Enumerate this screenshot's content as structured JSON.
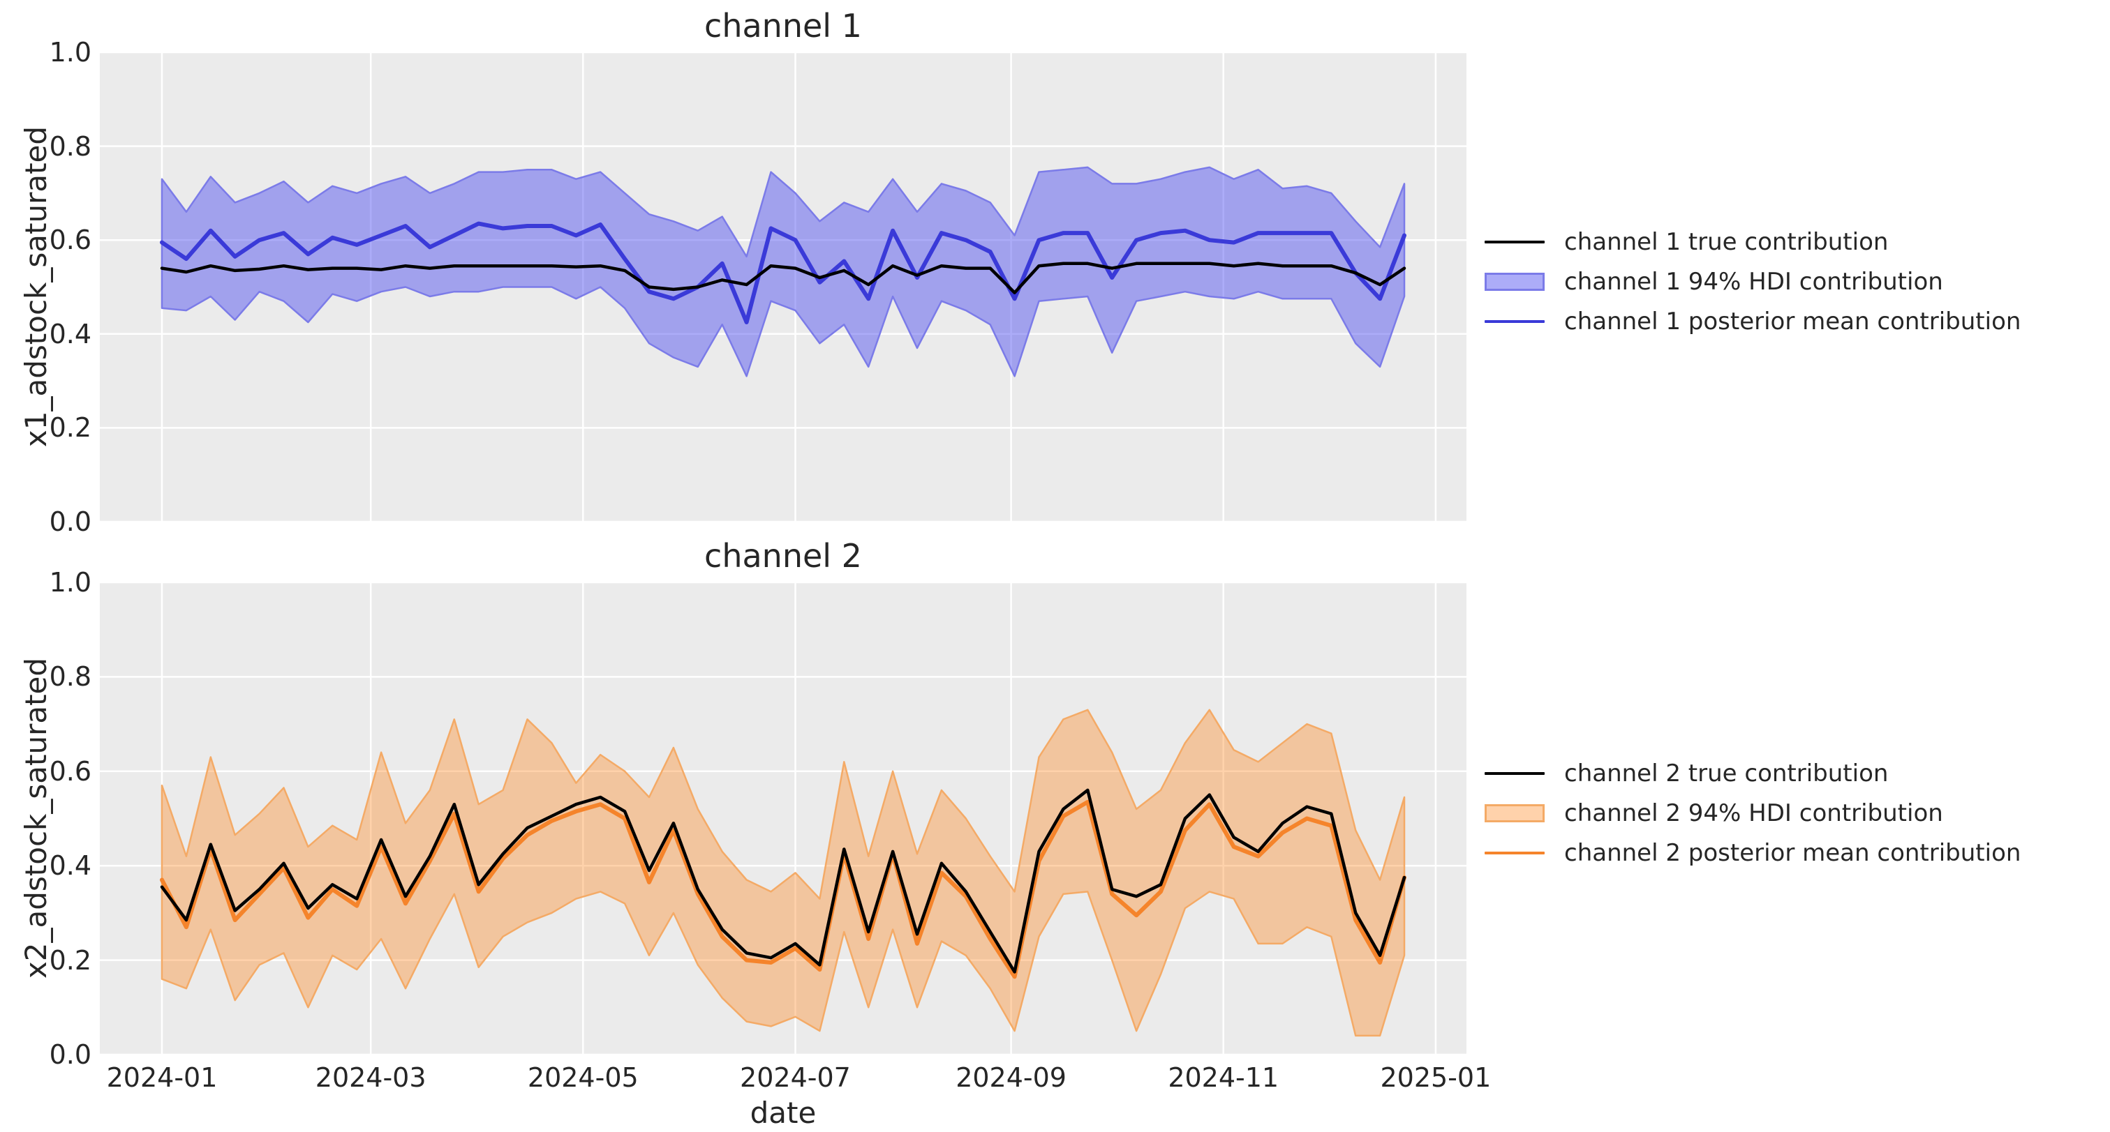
{
  "figure": {
    "background": "#ffffff",
    "xlabel": "date"
  },
  "colors": {
    "plot_bg": "#ebebeb",
    "grid": "#ffffff",
    "text": "#262626",
    "true_line": "#000000",
    "ch1_line": "#3a3ad8",
    "ch1_band_fill": "rgba(70,70,240,0.45)",
    "ch1_band_edge": "#7b7be8",
    "ch2_line": "#f5842b",
    "ch2_band_fill": "rgba(255,127,14,0.35)",
    "ch2_band_edge": "#f4aa66"
  },
  "chart_data": [
    {
      "type": "area",
      "title": "channel 1",
      "ylabel": "x1_adstock_saturated",
      "xlabel": "date",
      "x_start_date": "2024-01-01",
      "step_days": 7,
      "x_margin_frac": 0.05,
      "ylim": [
        0.0,
        1.0
      ],
      "grid": true,
      "x_tick_labels": [
        "2024-01",
        "2024-03",
        "2024-05",
        "2024-07",
        "2024-09",
        "2024-11",
        "2025-01"
      ],
      "x_tick_days": [
        0,
        60,
        121,
        182,
        244,
        305,
        366
      ],
      "y_ticks": [
        0.0,
        0.2,
        0.4,
        0.6,
        0.8,
        1.0
      ],
      "y_tick_labels": [
        "0.0",
        "0.2",
        "0.4",
        "0.6",
        "0.8",
        "1.0"
      ],
      "legend_position": "center right, outside axes",
      "legend": [
        "channel 1 true contribution",
        "channel 1 94% HDI contribution",
        "channel 1 posterior mean contribution"
      ],
      "series": {
        "true": [
          0.54,
          0.532,
          0.545,
          0.535,
          0.538,
          0.545,
          0.537,
          0.54,
          0.54,
          0.537,
          0.545,
          0.54,
          0.545,
          0.545,
          0.545,
          0.545,
          0.545,
          0.543,
          0.545,
          0.535,
          0.5,
          0.495,
          0.5,
          0.515,
          0.505,
          0.545,
          0.54,
          0.52,
          0.535,
          0.505,
          0.545,
          0.525,
          0.545,
          0.54,
          0.54,
          0.488,
          0.545,
          0.55,
          0.55,
          0.54,
          0.55,
          0.55,
          0.55,
          0.55,
          0.545,
          0.55,
          0.545,
          0.545,
          0.545,
          0.53,
          0.505,
          0.54
        ],
        "posterior_mean": [
          0.595,
          0.56,
          0.62,
          0.565,
          0.6,
          0.615,
          0.57,
          0.605,
          0.59,
          0.61,
          0.63,
          0.585,
          0.61,
          0.635,
          0.625,
          0.63,
          0.63,
          0.61,
          0.633,
          0.56,
          0.49,
          0.475,
          0.5,
          0.55,
          0.425,
          0.625,
          0.6,
          0.51,
          0.555,
          0.475,
          0.62,
          0.52,
          0.615,
          0.6,
          0.575,
          0.475,
          0.6,
          0.615,
          0.615,
          0.52,
          0.6,
          0.615,
          0.62,
          0.6,
          0.595,
          0.615,
          0.615,
          0.615,
          0.615,
          0.53,
          0.475,
          0.61
        ],
        "hdi_upper": [
          0.73,
          0.66,
          0.735,
          0.68,
          0.7,
          0.725,
          0.68,
          0.715,
          0.7,
          0.72,
          0.735,
          0.7,
          0.72,
          0.745,
          0.745,
          0.75,
          0.75,
          0.73,
          0.745,
          0.7,
          0.655,
          0.64,
          0.62,
          0.65,
          0.565,
          0.745,
          0.7,
          0.64,
          0.68,
          0.66,
          0.73,
          0.66,
          0.72,
          0.705,
          0.68,
          0.61,
          0.745,
          0.75,
          0.755,
          0.72,
          0.72,
          0.73,
          0.745,
          0.755,
          0.73,
          0.75,
          0.71,
          0.715,
          0.7,
          0.64,
          0.585,
          0.72
        ],
        "hdi_lower": [
          0.455,
          0.45,
          0.48,
          0.43,
          0.49,
          0.47,
          0.425,
          0.485,
          0.47,
          0.49,
          0.5,
          0.48,
          0.49,
          0.49,
          0.5,
          0.5,
          0.5,
          0.475,
          0.5,
          0.455,
          0.38,
          0.35,
          0.33,
          0.42,
          0.31,
          0.47,
          0.45,
          0.38,
          0.42,
          0.33,
          0.48,
          0.37,
          0.47,
          0.45,
          0.42,
          0.31,
          0.47,
          0.475,
          0.48,
          0.36,
          0.47,
          0.48,
          0.49,
          0.48,
          0.475,
          0.49,
          0.475,
          0.475,
          0.475,
          0.38,
          0.33,
          0.48
        ]
      }
    },
    {
      "type": "area",
      "title": "channel 2",
      "ylabel": "x2_adstock_saturated",
      "xlabel": "date",
      "x_start_date": "2024-01-01",
      "step_days": 7,
      "x_margin_frac": 0.05,
      "ylim": [
        0.0,
        1.0
      ],
      "grid": true,
      "x_tick_labels": [
        "2024-01",
        "2024-03",
        "2024-05",
        "2024-07",
        "2024-09",
        "2024-11",
        "2025-01"
      ],
      "x_tick_days": [
        0,
        60,
        121,
        182,
        244,
        305,
        366
      ],
      "y_ticks": [
        0.0,
        0.2,
        0.4,
        0.6,
        0.8,
        1.0
      ],
      "y_tick_labels": [
        "0.0",
        "0.2",
        "0.4",
        "0.6",
        "0.8",
        "1.0"
      ],
      "legend_position": "center right, outside axes",
      "legend": [
        "channel 2 true contribution",
        "channel 2 94% HDI contribution",
        "channel 2 posterior mean contribution"
      ],
      "series": {
        "true": [
          0.355,
          0.285,
          0.445,
          0.305,
          0.35,
          0.405,
          0.31,
          0.36,
          0.33,
          0.455,
          0.335,
          0.42,
          0.53,
          0.36,
          0.425,
          0.48,
          0.505,
          0.53,
          0.545,
          0.515,
          0.39,
          0.49,
          0.35,
          0.265,
          0.215,
          0.205,
          0.235,
          0.19,
          0.435,
          0.26,
          0.43,
          0.255,
          0.405,
          0.345,
          0.26,
          0.175,
          0.43,
          0.52,
          0.56,
          0.35,
          0.335,
          0.36,
          0.5,
          0.55,
          0.46,
          0.43,
          0.49,
          0.525,
          0.51,
          0.3,
          0.21,
          0.375
        ],
        "posterior_mean": [
          0.37,
          0.27,
          0.435,
          0.285,
          0.34,
          0.395,
          0.29,
          0.35,
          0.315,
          0.44,
          0.32,
          0.41,
          0.51,
          0.345,
          0.415,
          0.465,
          0.495,
          0.515,
          0.53,
          0.5,
          0.365,
          0.475,
          0.34,
          0.25,
          0.2,
          0.195,
          0.225,
          0.18,
          0.425,
          0.245,
          0.425,
          0.235,
          0.385,
          0.335,
          0.245,
          0.165,
          0.41,
          0.505,
          0.535,
          0.34,
          0.295,
          0.345,
          0.475,
          0.53,
          0.44,
          0.42,
          0.47,
          0.5,
          0.485,
          0.285,
          0.195,
          0.375
        ],
        "hdi_upper": [
          0.57,
          0.42,
          0.63,
          0.465,
          0.51,
          0.565,
          0.44,
          0.485,
          0.455,
          0.64,
          0.49,
          0.56,
          0.71,
          0.53,
          0.56,
          0.71,
          0.66,
          0.575,
          0.635,
          0.6,
          0.545,
          0.65,
          0.52,
          0.43,
          0.37,
          0.345,
          0.385,
          0.33,
          0.62,
          0.42,
          0.6,
          0.425,
          0.56,
          0.5,
          0.42,
          0.345,
          0.63,
          0.71,
          0.73,
          0.64,
          0.52,
          0.56,
          0.66,
          0.73,
          0.645,
          0.62,
          0.66,
          0.7,
          0.68,
          0.475,
          0.37,
          0.545
        ],
        "hdi_lower": [
          0.16,
          0.14,
          0.265,
          0.115,
          0.19,
          0.215,
          0.1,
          0.21,
          0.18,
          0.245,
          0.14,
          0.245,
          0.34,
          0.185,
          0.25,
          0.28,
          0.3,
          0.33,
          0.345,
          0.32,
          0.21,
          0.3,
          0.19,
          0.12,
          0.07,
          0.06,
          0.08,
          0.05,
          0.26,
          0.1,
          0.265,
          0.1,
          0.24,
          0.21,
          0.14,
          0.05,
          0.25,
          0.34,
          0.345,
          0.2,
          0.05,
          0.17,
          0.31,
          0.345,
          0.33,
          0.235,
          0.235,
          0.27,
          0.25,
          0.04,
          0.04,
          0.21
        ]
      }
    }
  ]
}
